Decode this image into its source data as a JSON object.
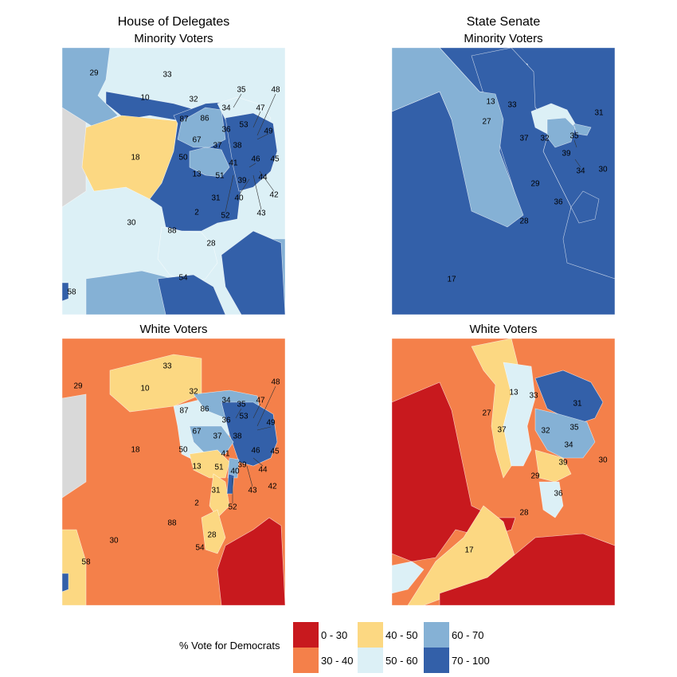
{
  "colors": {
    "c0_30": "#c8191e",
    "c30_40": "#f4804a",
    "c40_50": "#fcd882",
    "c50_60": "#dcf0f6",
    "c60_70": "#85b1d5",
    "c70_100": "#3360a9",
    "na": "#d9d9d9"
  },
  "titles": {
    "house": "House of Delegates",
    "senate": "State Senate",
    "minority": "Minority Voters",
    "white": "White Voters"
  },
  "house_districts": [
    "29",
    "33",
    "10",
    "32",
    "35",
    "48",
    "34",
    "47",
    "87",
    "86",
    "36",
    "53",
    "49",
    "67",
    "37",
    "38",
    "18",
    "50",
    "41",
    "45",
    "46",
    "13",
    "51",
    "39",
    "44",
    "42",
    "31",
    "40",
    "43",
    "2",
    "52",
    "30",
    "88",
    "28",
    "54",
    "58"
  ],
  "senate_districts": [
    "13",
    "33",
    "31",
    "27",
    "37",
    "32",
    "35",
    "39",
    "34",
    "30",
    "29",
    "36",
    "28",
    "17"
  ],
  "legend": {
    "title": "% Vote for Democrats",
    "items": [
      {
        "label": "0 - 30",
        "color_key": "c0_30"
      },
      {
        "label": "30 - 40",
        "color_key": "c30_40"
      },
      {
        "label": "40 - 50",
        "color_key": "c40_50"
      },
      {
        "label": "50 - 60",
        "color_key": "c50_60"
      },
      {
        "label": "60 - 70",
        "color_key": "c60_70"
      },
      {
        "label": "70 - 100",
        "color_key": "c70_100"
      }
    ]
  }
}
